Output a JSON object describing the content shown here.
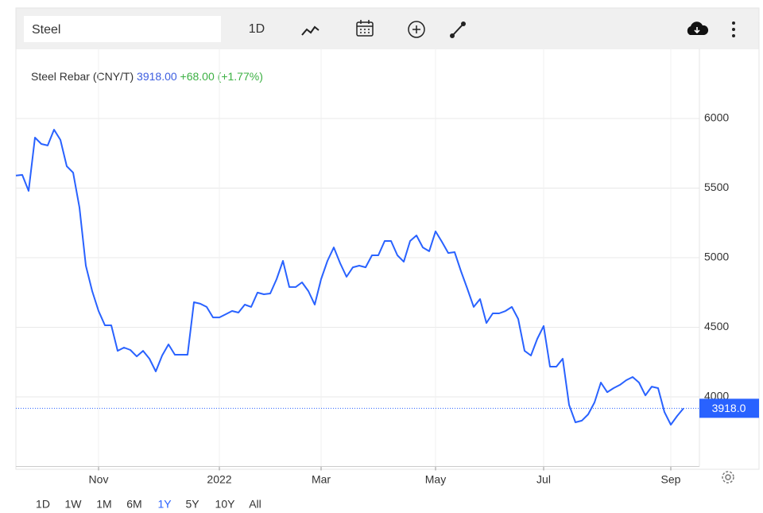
{
  "toolbar": {
    "search": "Steel",
    "interval": "1D"
  },
  "chart_data": {
    "type": "line",
    "title": "Steel Rebar (CNY/T)",
    "price": "3918.00",
    "change": "+68.00",
    "change_percent": "(+1.77%)",
    "last_value_label": "3918.0",
    "categories": [
      null,
      null,
      null,
      null,
      null,
      null,
      null,
      null,
      null,
      null,
      null,
      null,
      null,
      "Nov",
      null,
      null,
      null,
      null,
      null,
      null,
      null,
      null,
      null,
      null,
      null,
      null,
      null,
      null,
      null,
      null,
      null,
      null,
      "2022",
      null,
      null,
      null,
      null,
      null,
      null,
      null,
      null,
      null,
      null,
      null,
      null,
      null,
      null,
      null,
      "Mar",
      null,
      null,
      null,
      null,
      null,
      null,
      null,
      null,
      null,
      null,
      null,
      null,
      null,
      null,
      null,
      null,
      null,
      "May",
      null,
      null,
      null,
      null,
      null,
      null,
      null,
      null,
      null,
      null,
      null,
      null,
      null,
      null,
      null,
      null,
      "Jul",
      null,
      null,
      null,
      null,
      null,
      null,
      null,
      null,
      null,
      null,
      null,
      null,
      null,
      null,
      null,
      null,
      null,
      null,
      null,
      "Sep",
      null,
      null
    ],
    "values": [
      5590,
      5595,
      5480,
      5863,
      5817,
      5806,
      5920,
      5846,
      5657,
      5611,
      5360,
      4943,
      4760,
      4617,
      4514,
      4514,
      4331,
      4354,
      4337,
      4291,
      4331,
      4274,
      4183,
      4297,
      4377,
      4303,
      4303,
      4303,
      4680,
      4669,
      4646,
      4571,
      4571,
      4594,
      4617,
      4606,
      4663,
      4646,
      4749,
      4737,
      4743,
      4846,
      4977,
      4789,
      4789,
      4823,
      4760,
      4663,
      4846,
      4977,
      5074,
      4960,
      4863,
      4931,
      4943,
      4931,
      5017,
      5017,
      5120,
      5120,
      5017,
      4971,
      5120,
      5160,
      5074,
      5046,
      5189,
      5114,
      5034,
      5040,
      4903,
      4777,
      4646,
      4703,
      4531,
      4600,
      4600,
      4617,
      4646,
      4560,
      4331,
      4297,
      4417,
      4509,
      4217,
      4217,
      4274,
      3943,
      3817,
      3829,
      3874,
      3960,
      4103,
      4034,
      4063,
      4086,
      4120,
      4143,
      4103,
      4011,
      4074,
      4063,
      3891,
      3800,
      3863,
      3918
    ],
    "color": "#2962ff",
    "ylim": [
      3500,
      6500
    ],
    "yticks": [
      4000,
      4500,
      5000,
      5500,
      6000
    ],
    "grid": true
  },
  "ranges": [
    "1D",
    "1W",
    "1M",
    "6M",
    "1Y",
    "5Y",
    "10Y",
    "All"
  ]
}
